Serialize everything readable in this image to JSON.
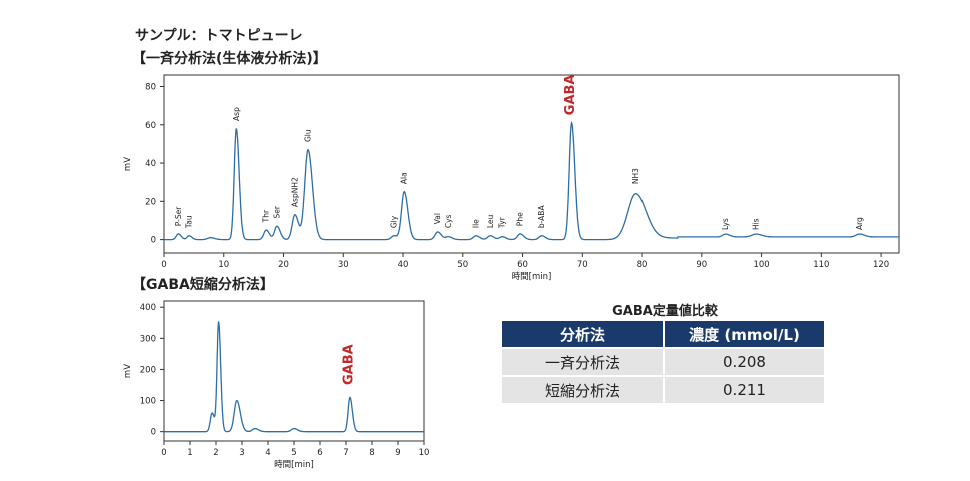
{
  "headings": {
    "sample": "サンプル：トマトピューレ",
    "batch_title": "【一斉分析法(生体液分析法)】",
    "short_title": "【GABA短縮分析法】"
  },
  "comparison": {
    "title": "GABA定量値比較",
    "columns": [
      "分析法",
      "濃度 (mmol/L)"
    ],
    "rows": [
      {
        "method": "一斉分析法",
        "value": "0.208"
      },
      {
        "method": "短縮分析法",
        "value": "0.211"
      }
    ],
    "header_color": "#1a3a6b"
  },
  "colors": {
    "trace": "#2e6da4",
    "gaba_label": "#c0282a"
  },
  "chart_data": [
    {
      "type": "line",
      "xlabel": "時間[min]",
      "ylabel": "mV",
      "xlim": [
        0,
        123
      ],
      "ylim": [
        -7,
        86
      ],
      "xticks": [
        0,
        10,
        20,
        30,
        40,
        50,
        60,
        70,
        80,
        90,
        100,
        110,
        120
      ],
      "yticks": [
        0,
        20,
        40,
        60,
        80
      ],
      "baseline": 0,
      "peaks": [
        {
          "label": "P-Ser",
          "x": 2.4,
          "y": 3,
          "w": 0.35,
          "labelY": 7
        },
        {
          "label": "Tau",
          "x": 4.2,
          "y": 2,
          "w": 0.35,
          "labelY": 6
        },
        {
          "label": "",
          "x": 7.8,
          "y": 1,
          "w": 0.5,
          "labelY": 0
        },
        {
          "label": "Asp",
          "x": 12.1,
          "y": 58,
          "w": 0.35,
          "labelY": 62
        },
        {
          "label": "Thr",
          "x": 17.1,
          "y": 5,
          "w": 0.4,
          "labelY": 9
        },
        {
          "label": "Ser",
          "x": 18.9,
          "y": 7,
          "w": 0.4,
          "labelY": 11
        },
        {
          "label": "AspNH2",
          "x": 21.9,
          "y": 13,
          "w": 0.45,
          "labelY": 17
        },
        {
          "label": "Glu",
          "x": 24.1,
          "y": 47,
          "w": 0.55,
          "labelY": 51
        },
        {
          "label": "Gly",
          "x": 38.5,
          "y": 2,
          "w": 0.45,
          "labelY": 6
        },
        {
          "label": "Ala",
          "x": 40.2,
          "y": 25,
          "w": 0.45,
          "labelY": 29
        },
        {
          "label": "Val",
          "x": 45.8,
          "y": 4,
          "w": 0.45,
          "labelY": 8
        },
        {
          "label": "Cys",
          "x": 47.6,
          "y": 1.5,
          "w": 0.45,
          "labelY": 6
        },
        {
          "label": "Ile",
          "x": 52.2,
          "y": 2,
          "w": 0.45,
          "labelY": 6
        },
        {
          "label": "Leu",
          "x": 54.6,
          "y": 2,
          "w": 0.45,
          "labelY": 6
        },
        {
          "label": "Tyr",
          "x": 56.6,
          "y": 1.5,
          "w": 0.45,
          "labelY": 6
        },
        {
          "label": "Phe",
          "x": 59.6,
          "y": 3,
          "w": 0.45,
          "labelY": 7
        },
        {
          "label": "b-ABA",
          "x": 63.2,
          "y": 2,
          "w": 0.45,
          "labelY": 6
        },
        {
          "label": "GABA",
          "x": 68.2,
          "y": 61,
          "w": 0.4,
          "labelY": 65,
          "highlight": true
        },
        {
          "label": "NH3",
          "x": 78.9,
          "y": 24,
          "w": 1.3,
          "labelY": 29
        },
        {
          "label": "Lys",
          "x": 94.0,
          "y": 1.5,
          "w": 0.5,
          "labelY": 5
        },
        {
          "label": "His",
          "x": 99.1,
          "y": 1.5,
          "w": 0.7,
          "labelY": 5
        },
        {
          "label": "Arg",
          "x": 116.4,
          "y": 1.5,
          "w": 0.6,
          "labelY": 5
        }
      ]
    },
    {
      "type": "line",
      "xlabel": "時間[min]",
      "ylabel": "mV",
      "xlim": [
        0,
        10
      ],
      "ylim": [
        -30,
        420
      ],
      "xticks": [
        0,
        1,
        2,
        3,
        4,
        5,
        6,
        7,
        8,
        9,
        10
      ],
      "yticks": [
        0,
        100,
        200,
        300,
        400
      ],
      "baseline": 0,
      "peaks": [
        {
          "label": "",
          "x": 1.85,
          "y": 60,
          "w": 0.07,
          "labelY": 0
        },
        {
          "label": "",
          "x": 2.1,
          "y": 350,
          "w": 0.06,
          "labelY": 0
        },
        {
          "label": "",
          "x": 2.8,
          "y": 100,
          "w": 0.1,
          "labelY": 0
        },
        {
          "label": "",
          "x": 3.5,
          "y": 10,
          "w": 0.1,
          "labelY": 0
        },
        {
          "label": "",
          "x": 5.0,
          "y": 10,
          "w": 0.1,
          "labelY": 0
        },
        {
          "label": "GABA",
          "x": 7.15,
          "y": 110,
          "w": 0.07,
          "labelY": 150,
          "highlight": true
        }
      ]
    }
  ]
}
